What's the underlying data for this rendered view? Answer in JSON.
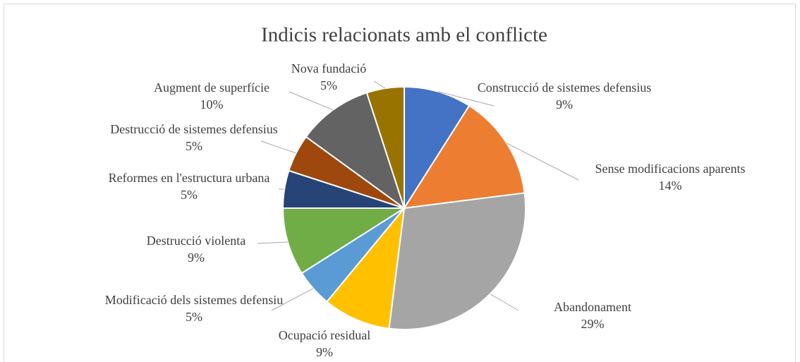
{
  "chart_data": {
    "type": "pie",
    "title": "Indicis relacionats amb el conflicte",
    "categories": [
      "Construcció de sistemes defensius",
      "Sense modificacions aparents",
      "Abandonament",
      "Ocupació residual",
      "Modificació dels sistemes defensiu",
      "Destrucció violenta",
      "Reformes en l'estructura urbana",
      "Destrucció de sistemes defensius",
      "Augment de superfície",
      "Nova fundació"
    ],
    "values": [
      9,
      14,
      29,
      9,
      5,
      9,
      5,
      5,
      10,
      5
    ],
    "value_labels": [
      "9%",
      "14%",
      "29%",
      "9%",
      "5%",
      "9%",
      "5%",
      "5%",
      "10%",
      "5%"
    ],
    "colors": [
      "#4472c4",
      "#ed7d31",
      "#a5a5a5",
      "#ffc000",
      "#5b9bd5",
      "#70ad47",
      "#264478",
      "#9e480e",
      "#636363",
      "#997300"
    ]
  }
}
